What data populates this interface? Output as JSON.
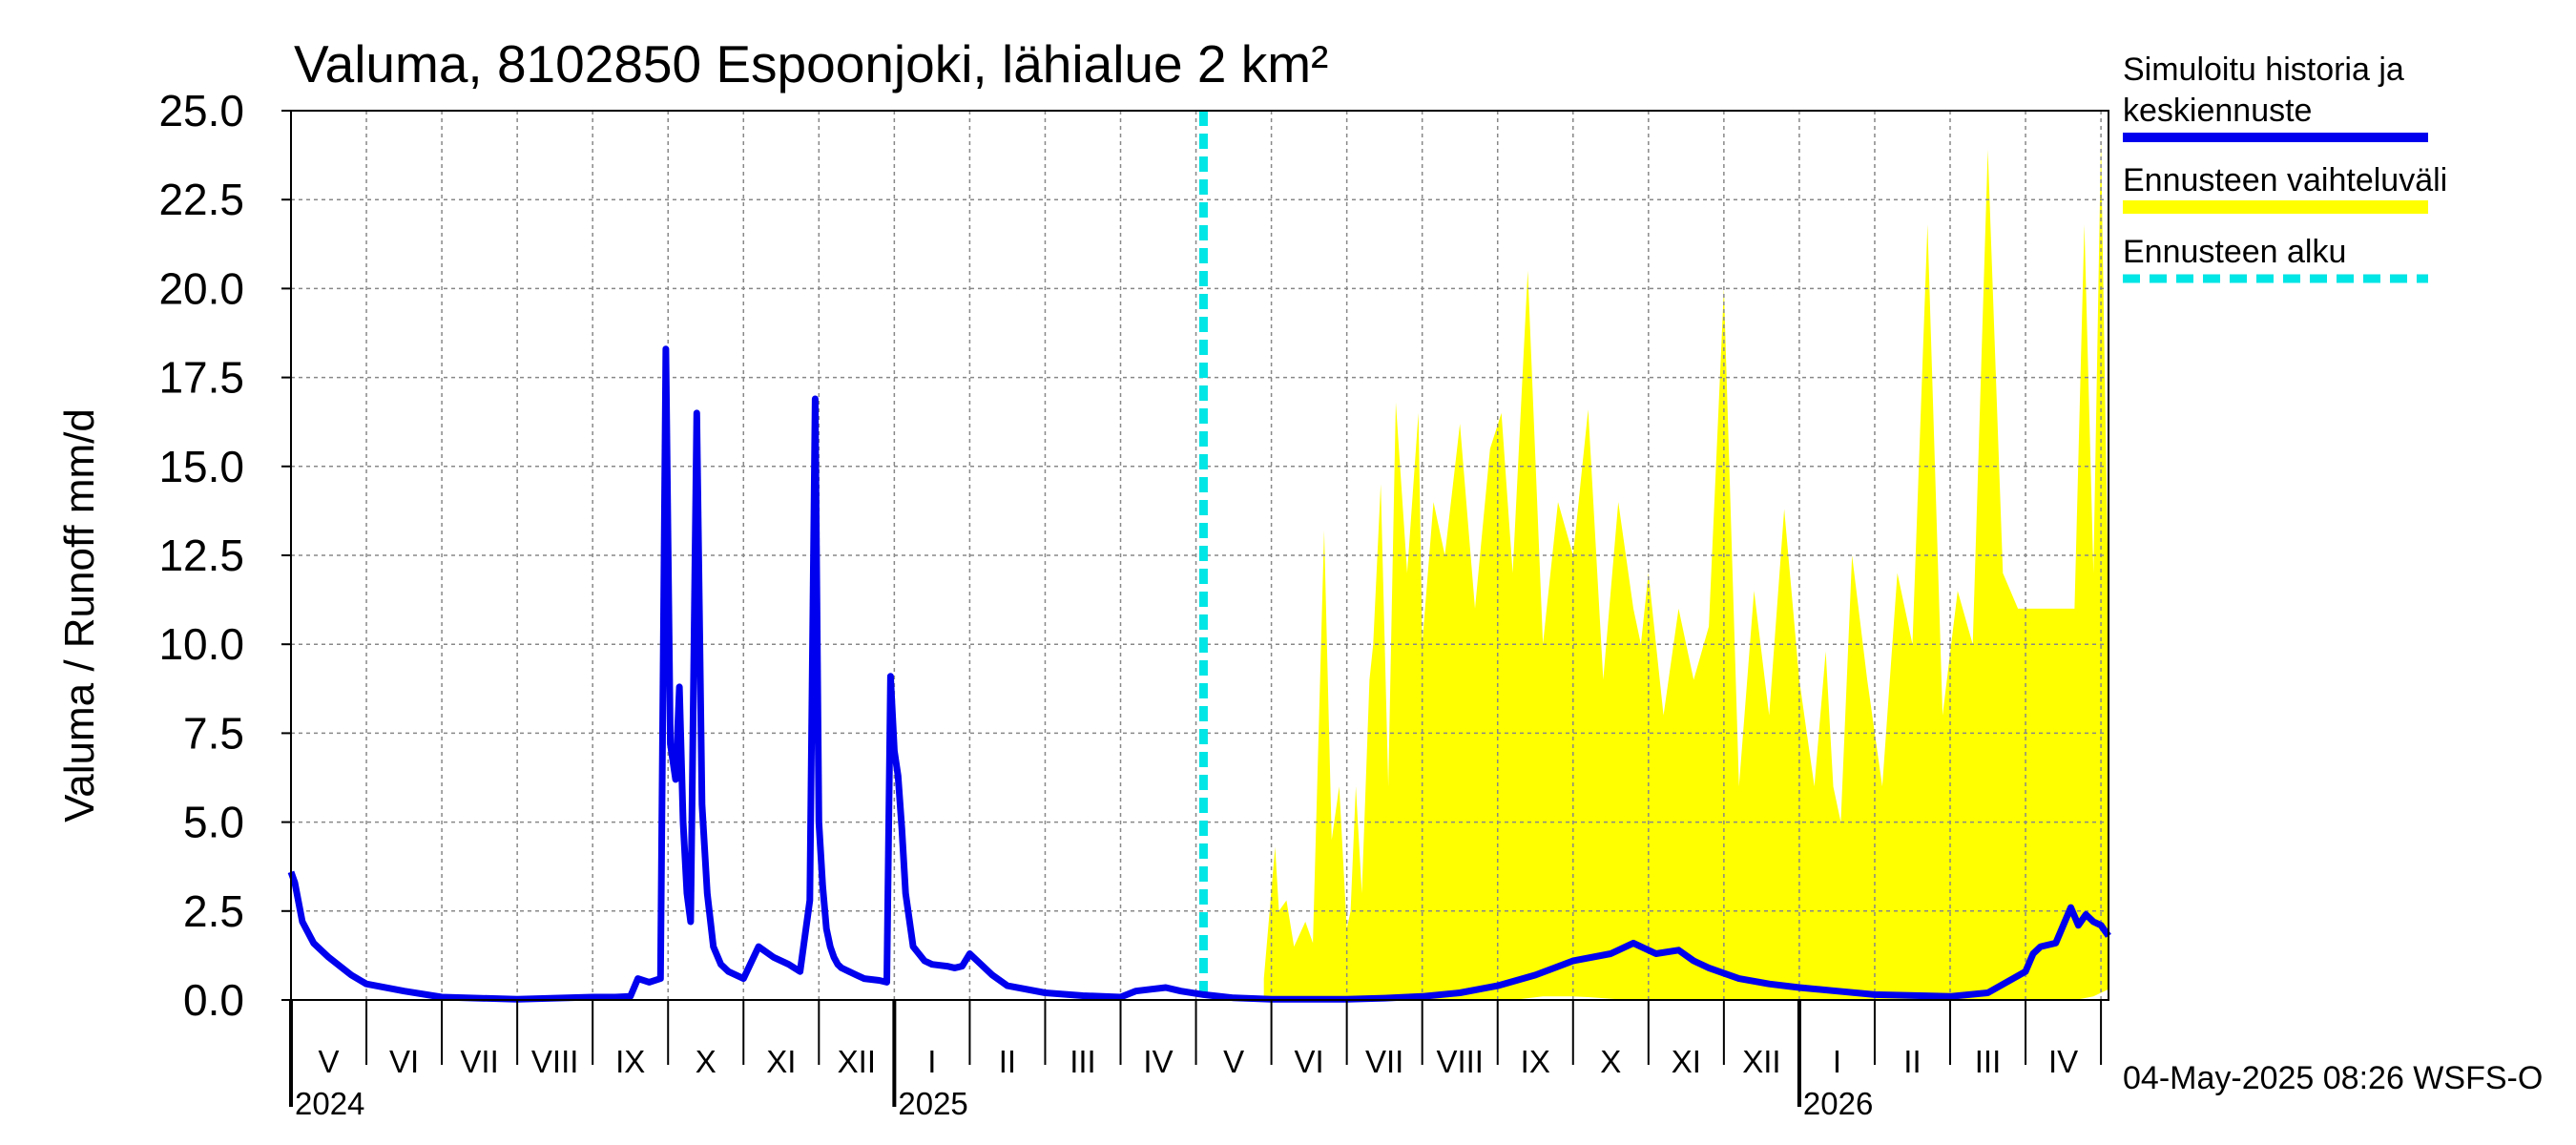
{
  "chart_data": {
    "type": "line",
    "title": "Valuma, 8102850 Espoonjoki, lähialue 2 km²",
    "ylabel": "Valuma / Runoff     mm/d",
    "xlabel": "",
    "ylim": [
      0,
      25
    ],
    "yticks": [
      "0.0",
      "2.5",
      "5.0",
      "7.5",
      "10.0",
      "12.5",
      "15.0",
      "17.5",
      "20.0",
      "22.5",
      "25.0"
    ],
    "x_range_months": [
      0,
      24.1
    ],
    "months": [
      "V",
      "VI",
      "VII",
      "VIII",
      "IX",
      "X",
      "XI",
      "XII",
      "I",
      "II",
      "III",
      "IV",
      "V",
      "VI",
      "VII",
      "VIII",
      "IX",
      "X",
      "XI",
      "XII",
      "I",
      "II",
      "III",
      "IV"
    ],
    "years": [
      {
        "label": "2024",
        "at_month": 0
      },
      {
        "label": "2025",
        "at_month": 8
      },
      {
        "label": "2026",
        "at_month": 20
      }
    ],
    "forecast_start_month": 12.1,
    "legend": [
      {
        "label": "Simuloitu historia ja keskiennuste",
        "color": "#0000ee",
        "style": "solid"
      },
      {
        "label": "Ennusteen vaihteluväli",
        "color": "#ffff00",
        "style": "band"
      },
      {
        "label": "Ennusteen alku",
        "color": "#00e5e5",
        "style": "dashed"
      }
    ],
    "series": [
      {
        "name": "Simuloitu historia ja keskiennuste",
        "color": "#0000ee",
        "x": [
          0,
          0.05,
          0.15,
          0.3,
          0.5,
          0.8,
          1,
          1.5,
          2,
          3,
          3.5,
          4,
          4.3,
          4.5,
          4.6,
          4.75,
          4.9,
          4.97,
          5.03,
          5.1,
          5.15,
          5.2,
          5.25,
          5.3,
          5.38,
          5.45,
          5.52,
          5.6,
          5.7,
          5.8,
          6,
          6.2,
          6.4,
          6.6,
          6.75,
          6.88,
          6.95,
          7,
          7.05,
          7.1,
          7.15,
          7.2,
          7.25,
          7.3,
          7.4,
          7.5,
          7.6,
          7.8,
          7.9,
          7.95,
          8.0,
          8.05,
          8.1,
          8.15,
          8.25,
          8.4,
          8.5,
          8.7,
          8.8,
          8.9,
          9,
          9.1,
          9.3,
          9.5,
          10,
          10.5,
          11,
          11.2,
          11.4,
          11.6,
          11.8,
          12.1,
          12.5,
          13,
          14,
          14.5,
          15,
          15.5,
          16,
          16.5,
          17,
          17.5,
          17.8,
          18.1,
          18.4,
          18.6,
          18.8,
          19.2,
          19.6,
          20,
          20.5,
          21,
          22,
          22.5,
          23,
          23.1,
          23.2,
          23.4,
          23.6,
          23.7,
          23.8,
          23.9,
          24.0,
          24.1
        ],
        "values": [
          3.6,
          3.3,
          2.2,
          1.6,
          1.2,
          0.7,
          0.45,
          0.25,
          0.08,
          0.02,
          0.05,
          0.08,
          0.08,
          0.1,
          0.6,
          0.5,
          0.6,
          18.3,
          7.2,
          6.2,
          8.8,
          5.0,
          3.0,
          2.2,
          16.5,
          5.5,
          3.0,
          1.5,
          1.0,
          0.8,
          0.6,
          1.5,
          1.2,
          1.0,
          0.8,
          2.8,
          16.9,
          5.0,
          3.2,
          2.0,
          1.5,
          1.2,
          1.0,
          0.9,
          0.8,
          0.7,
          0.6,
          0.55,
          0.5,
          9.1,
          7.0,
          6.3,
          4.8,
          3.0,
          1.5,
          1.1,
          1.0,
          0.95,
          0.9,
          0.95,
          1.3,
          1.1,
          0.7,
          0.4,
          0.2,
          0.12,
          0.08,
          0.25,
          0.3,
          0.35,
          0.25,
          0.15,
          0.06,
          0.02,
          0.02,
          0.05,
          0.1,
          0.2,
          0.4,
          0.7,
          1.1,
          1.3,
          1.6,
          1.3,
          1.4,
          1.1,
          0.9,
          0.6,
          0.45,
          0.35,
          0.25,
          0.15,
          0.1,
          0.2,
          0.8,
          1.3,
          1.5,
          1.6,
          2.6,
          2.1,
          2.4,
          2.2,
          2.1,
          1.8
        ]
      },
      {
        "name": "Ennusteen vaihteluväli",
        "color": "#ffff00",
        "x": [
          12.9,
          13.05,
          13.1,
          13.2,
          13.3,
          13.45,
          13.55,
          13.7,
          13.8,
          13.9,
          14.0,
          14.05,
          14.12,
          14.2,
          14.3,
          14.35,
          14.45,
          14.55,
          14.65,
          14.8,
          14.95,
          15.0,
          15.15,
          15.3,
          15.5,
          15.7,
          15.9,
          16.05,
          16.2,
          16.4,
          16.6,
          16.8,
          17.0,
          17.2,
          17.4,
          17.6,
          17.8,
          17.9,
          18.0,
          18.2,
          18.4,
          18.6,
          18.8,
          19.0,
          19.2,
          19.4,
          19.6,
          19.8,
          20.0,
          20.2,
          20.35,
          20.45,
          20.55,
          20.7,
          20.9,
          21.1,
          21.3,
          21.5,
          21.7,
          21.9,
          22.1,
          22.3,
          22.5,
          22.7,
          22.9,
          23.05,
          23.15,
          23.3,
          23.5,
          23.65,
          23.78,
          23.9,
          24.0,
          24.1
        ],
        "upper": [
          0.6,
          4.3,
          2.5,
          2.8,
          1.5,
          2.2,
          1.6,
          13.2,
          4.5,
          6.0,
          2.0,
          2.5,
          6.0,
          3.0,
          9.0,
          10.0,
          14.5,
          6.0,
          16.8,
          12.0,
          16.5,
          10.0,
          14.0,
          12.5,
          16.2,
          11.0,
          15.5,
          16.5,
          12.0,
          20.5,
          10.0,
          14.0,
          12.5,
          16.6,
          9.0,
          14.0,
          11.0,
          10.0,
          12.0,
          8.0,
          11.0,
          9.0,
          10.5,
          20.0,
          6.0,
          11.5,
          8.0,
          13.8,
          9.0,
          6.0,
          9.8,
          6.0,
          5.0,
          12.5,
          9.0,
          6.0,
          12.0,
          10.0,
          21.8,
          8.0,
          11.5,
          10.0,
          23.9,
          12.0,
          11.0,
          11.0,
          11.0,
          11.0,
          11.0,
          11.0,
          21.8,
          12.0,
          24.2,
          11.0
        ],
        "lower": [
          0.0,
          0.0,
          0.0,
          0.0,
          0.0,
          0.0,
          0.0,
          0.0,
          0.0,
          0.0,
          0.0,
          0.0,
          0.0,
          0.0,
          0.0,
          0.0,
          0.0,
          0.0,
          0.0,
          0.0,
          0.0,
          0.0,
          0.0,
          0.0,
          0.0,
          0.0,
          0.0,
          0.0,
          0.0,
          0.05,
          0.1,
          0.1,
          0.1,
          0.08,
          0.05,
          0.02,
          0.02,
          0.0,
          0.0,
          0.0,
          0.0,
          0.0,
          0.0,
          0.0,
          0.0,
          0.0,
          0.0,
          0.0,
          0.0,
          0.0,
          0.0,
          0.0,
          0.0,
          0.0,
          0.0,
          0.0,
          0.0,
          0.0,
          0.0,
          0.0,
          0.0,
          0.0,
          0.0,
          0.0,
          0.0,
          0.0,
          0.0,
          0.0,
          0.0,
          0.0,
          0.05,
          0.1,
          0.2,
          0.3
        ]
      }
    ],
    "footer_text": "04-May-2025 08:26 WSFS-O"
  }
}
